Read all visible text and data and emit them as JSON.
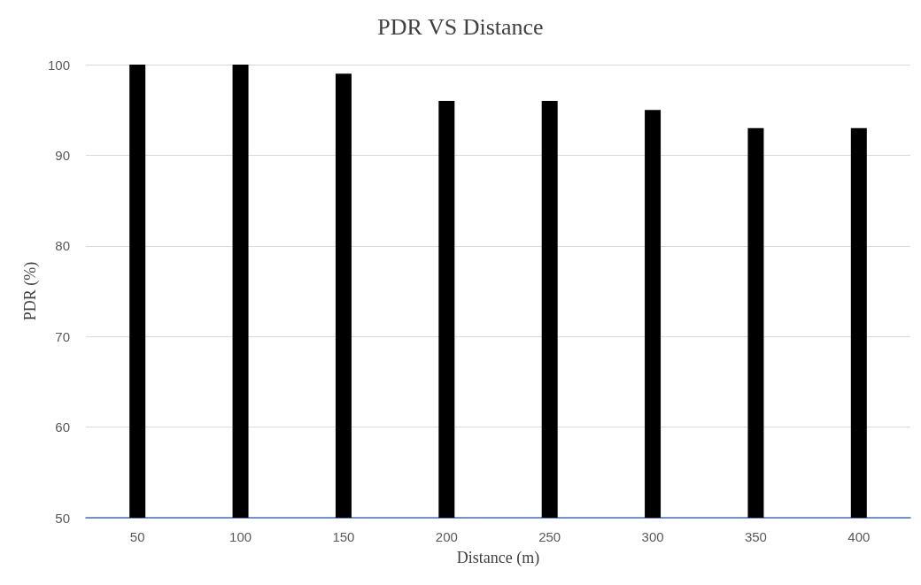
{
  "chart_data": {
    "type": "bar",
    "title": "PDR VS Distance",
    "xlabel": "Distance (m)",
    "ylabel": "PDR (%)",
    "categories": [
      "50",
      "100",
      "150",
      "200",
      "250",
      "300",
      "350",
      "400"
    ],
    "values": [
      100,
      100,
      99,
      96,
      96,
      95,
      93,
      93
    ],
    "color": "#000000",
    "ylim": [
      50,
      100
    ],
    "yticks": [
      50,
      60,
      70,
      80,
      90,
      100
    ],
    "grid": "y"
  }
}
